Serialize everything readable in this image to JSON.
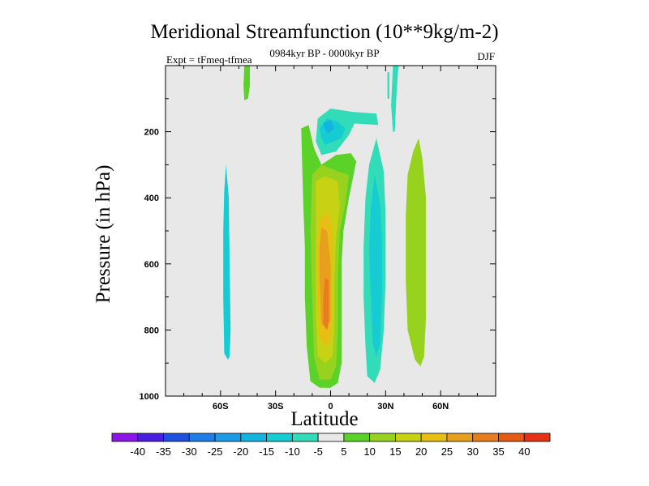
{
  "chart_data": {
    "type": "contour",
    "title": "Meridional Streamfunction (10**9kg/m-2)",
    "subtitle": "0984kyr BP - 0000kyr BP",
    "left_label": "Expt = tFmeq-tfmea",
    "right_label": "DJF",
    "xlabel": "Latitude",
    "ylabel": "Pressure (in hPa)",
    "xlim": [
      -90,
      90
    ],
    "ylim": [
      1000,
      0
    ],
    "x_ticks": [
      {
        "value": -60,
        "label": "60S"
      },
      {
        "value": -30,
        "label": "30S"
      },
      {
        "value": 0,
        "label": "0"
      },
      {
        "value": 30,
        "label": "30N"
      },
      {
        "value": 60,
        "label": "60N"
      }
    ],
    "y_ticks": [
      {
        "value": 200,
        "label": "200"
      },
      {
        "value": 400,
        "label": "400"
      },
      {
        "value": 600,
        "label": "600"
      },
      {
        "value": 800,
        "label": "800"
      },
      {
        "value": 1000,
        "label": "1000"
      }
    ],
    "background_color": "#e8e8e8",
    "colorbar": {
      "levels": [
        -40,
        -35,
        -30,
        -25,
        -20,
        -15,
        -10,
        -5,
        5,
        10,
        15,
        20,
        25,
        30,
        35,
        40
      ],
      "colors": [
        "#8c14e6",
        "#4a1ee0",
        "#1e50e0",
        "#1e7de6",
        "#1e9be6",
        "#14b4e0",
        "#14ccd2",
        "#32dcb9",
        "#e8e8e8",
        "#5ad228",
        "#96d21e",
        "#c8d214",
        "#e6be14",
        "#e6a01e",
        "#e67d1e",
        "#e65a14",
        "#e63214"
      ]
    },
    "regions": [
      {
        "name": "cell-60S-upper",
        "level": 5,
        "points": [
          [
            -47,
            0
          ],
          [
            -44,
            0
          ],
          [
            -44,
            60
          ],
          [
            -45,
            100
          ],
          [
            -47,
            105
          ],
          [
            -47.5,
            60
          ]
        ]
      },
      {
        "name": "cell-60S-lower",
        "level": -10,
        "points": [
          [
            -57,
            300
          ],
          [
            -55.5,
            400
          ],
          [
            -55,
            600
          ],
          [
            -54.5,
            800
          ],
          [
            -55,
            880
          ],
          [
            -56,
            890
          ],
          [
            -58,
            870
          ],
          [
            -58.5,
            700
          ],
          [
            -58.5,
            500
          ],
          [
            -58,
            380
          ]
        ]
      },
      {
        "name": "cell-tropical-outer",
        "level": 5,
        "points": [
          [
            -16,
            190
          ],
          [
            -12,
            180
          ],
          [
            -9,
            250
          ],
          [
            -5,
            300
          ],
          [
            3,
            270
          ],
          [
            11,
            265
          ],
          [
            14,
            290
          ],
          [
            10,
            400
          ],
          [
            7,
            500
          ],
          [
            6,
            600
          ],
          [
            6,
            750
          ],
          [
            6,
            900
          ],
          [
            4,
            960
          ],
          [
            0,
            975
          ],
          [
            -6,
            975
          ],
          [
            -11,
            955
          ],
          [
            -13,
            850
          ],
          [
            -14,
            700
          ],
          [
            -14,
            550
          ],
          [
            -15,
            400
          ],
          [
            -15.5,
            300
          ]
        ]
      },
      {
        "name": "cell-tropical-l10",
        "level": 10,
        "points": [
          [
            -10,
            330
          ],
          [
            -5,
            300
          ],
          [
            4,
            320
          ],
          [
            10,
            330
          ],
          [
            8,
            420
          ],
          [
            5,
            500
          ],
          [
            4,
            650
          ],
          [
            4,
            800
          ],
          [
            3,
            910
          ],
          [
            0,
            950
          ],
          [
            -6,
            950
          ],
          [
            -9,
            880
          ],
          [
            -10,
            700
          ],
          [
            -11,
            500
          ]
        ]
      },
      {
        "name": "cell-tropical-l15",
        "level": 15,
        "points": [
          [
            -8,
            350
          ],
          [
            -3,
            335
          ],
          [
            4,
            350
          ],
          [
            5,
            430
          ],
          [
            3,
            520
          ],
          [
            2,
            650
          ],
          [
            2,
            800
          ],
          [
            1,
            880
          ],
          [
            -3,
            900
          ],
          [
            -7,
            880
          ],
          [
            -8,
            750
          ],
          [
            -8,
            550
          ]
        ]
      },
      {
        "name": "cell-tropical-l20",
        "level": 20,
        "points": [
          [
            -6,
            470
          ],
          [
            -2,
            440
          ],
          [
            1,
            480
          ],
          [
            1,
            600
          ],
          [
            1,
            750
          ],
          [
            0,
            830
          ],
          [
            -3,
            850
          ],
          [
            -6,
            820
          ],
          [
            -7,
            680
          ],
          [
            -7,
            560
          ]
        ]
      },
      {
        "name": "cell-tropical-l25",
        "level": 25,
        "points": [
          [
            -5,
            490
          ],
          [
            -2,
            500
          ],
          [
            0,
            600
          ],
          [
            0,
            770
          ],
          [
            -2,
            800
          ],
          [
            -5,
            780
          ],
          [
            -6,
            650
          ],
          [
            -6,
            550
          ]
        ]
      },
      {
        "name": "cell-tropical-l30",
        "level": 30,
        "points": [
          [
            -3,
            640
          ],
          [
            -1,
            650
          ],
          [
            -1,
            770
          ],
          [
            -2,
            800
          ],
          [
            -4,
            780
          ],
          [
            -4,
            700
          ]
        ]
      },
      {
        "name": "cell-upper-neg-outer",
        "level": -5,
        "points": [
          [
            -7,
            160
          ],
          [
            0,
            130
          ],
          [
            12,
            140
          ],
          [
            25,
            145
          ],
          [
            26,
            180
          ],
          [
            13,
            175
          ],
          [
            10,
            210
          ],
          [
            3,
            260
          ],
          [
            -5,
            270
          ],
          [
            -8,
            230
          ]
        ]
      },
      {
        "name": "cell-upper-neg-l10",
        "level": -10,
        "points": [
          [
            -6,
            190
          ],
          [
            -2,
            160
          ],
          [
            4,
            170
          ],
          [
            8,
            190
          ],
          [
            6,
            220
          ],
          [
            -3,
            240
          ],
          [
            -5,
            220
          ]
        ]
      },
      {
        "name": "cell-upper-neg-l15",
        "level": -15,
        "points": [
          [
            -4,
            175
          ],
          [
            0,
            165
          ],
          [
            2,
            190
          ],
          [
            -1,
            205
          ],
          [
            -3,
            195
          ]
        ]
      },
      {
        "name": "cell-30N-outer",
        "level": -5,
        "points": [
          [
            25,
            220
          ],
          [
            29,
            320
          ],
          [
            30,
            450
          ],
          [
            30,
            650
          ],
          [
            29,
            800
          ],
          [
            27,
            920
          ],
          [
            24,
            960
          ],
          [
            20,
            940
          ],
          [
            19,
            850
          ],
          [
            18,
            700
          ],
          [
            18,
            550
          ],
          [
            19,
            400
          ],
          [
            21,
            300
          ]
        ]
      },
      {
        "name": "cell-30N-inner",
        "level": -10,
        "points": [
          [
            24,
            330
          ],
          [
            27,
            420
          ],
          [
            28,
            520
          ],
          [
            28,
            700
          ],
          [
            27,
            840
          ],
          [
            25,
            880
          ],
          [
            23,
            840
          ],
          [
            22,
            700
          ],
          [
            21,
            560
          ],
          [
            22,
            430
          ]
        ]
      },
      {
        "name": "cell-30N-top",
        "level": -5,
        "points": [
          [
            34,
            0
          ],
          [
            37,
            0
          ],
          [
            36,
            80
          ],
          [
            35,
            200
          ],
          [
            34,
            200
          ],
          [
            33,
            120
          ]
        ]
      },
      {
        "name": "cell-30N-top-sliver",
        "level": -5,
        "points": [
          [
            31,
            20
          ],
          [
            32,
            20
          ],
          [
            32,
            100
          ],
          [
            31,
            100
          ]
        ]
      },
      {
        "name": "cell-60N",
        "level": 10,
        "points": [
          [
            48,
            220
          ],
          [
            50,
            280
          ],
          [
            52,
            400
          ],
          [
            52,
            600
          ],
          [
            52,
            760
          ],
          [
            51,
            880
          ],
          [
            49,
            910
          ],
          [
            46,
            890
          ],
          [
            42,
            800
          ],
          [
            41,
            650
          ],
          [
            41,
            450
          ],
          [
            42,
            330
          ],
          [
            45,
            260
          ]
        ]
      }
    ]
  }
}
